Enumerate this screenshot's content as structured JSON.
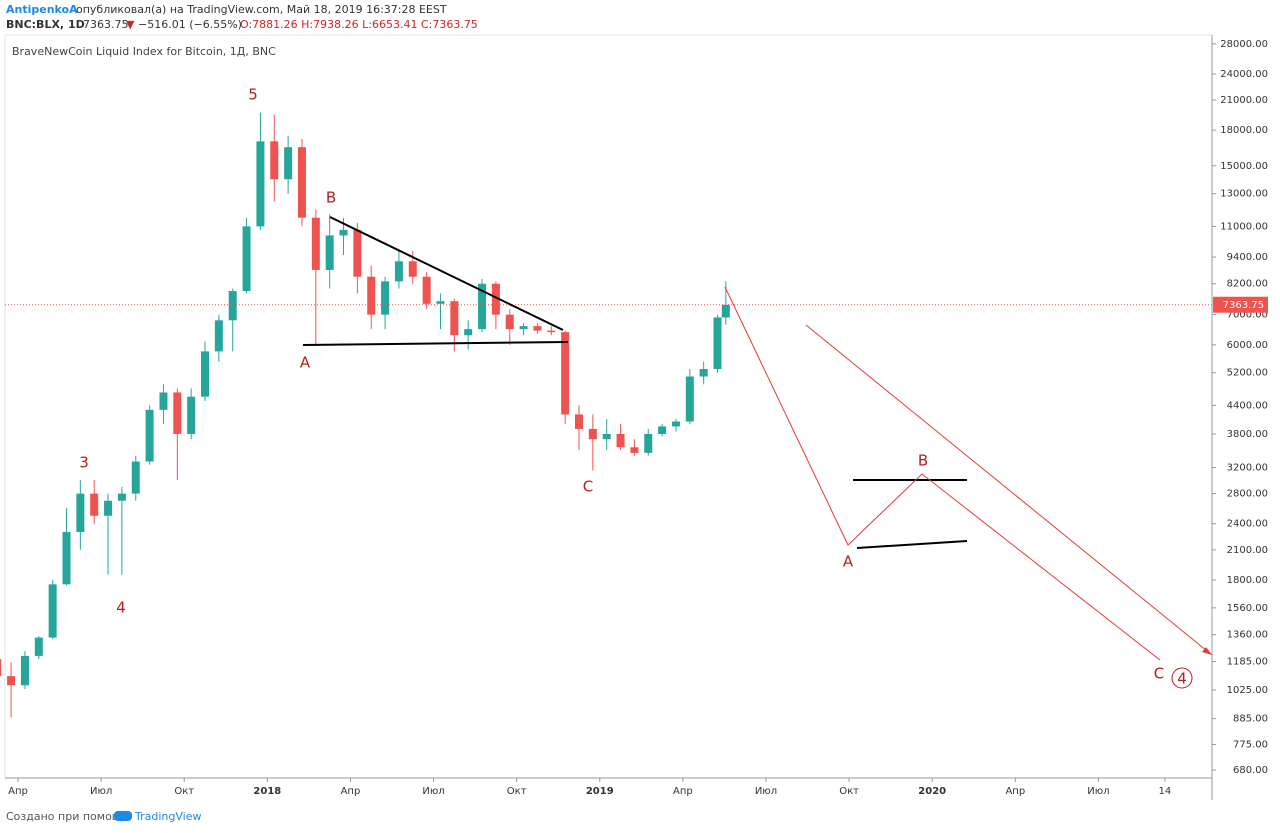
{
  "header": {
    "author": "AntipenkoA",
    "published": "опубликовал(а) на TradingView.com, Май 18, 2019 16:37:28 EEST",
    "symbol": "BNC:BLX, 1D",
    "last": "7363.75",
    "arrow": "▼",
    "change": "−516.01 (−6.55%)",
    "ohlc": "O:7881.26 H:7938.26 L:6653.41 C:7363.75"
  },
  "footer": {
    "text": "Создано при помощи",
    "brand": "TradingView"
  },
  "chart_data": {
    "type": "candlestick",
    "title": "BraveNewCoin Liquid Index for Bitcoin, 1Д, BNC",
    "log_scale": true,
    "up_color": "#26a69a",
    "down_color": "#ef5350",
    "xlim": [
      2.53,
      46.1
    ],
    "ylim": [
      653,
      29300
    ],
    "xticks": [
      {
        "value": 3,
        "label": "Апр"
      },
      {
        "value": 6,
        "label": "Июл"
      },
      {
        "value": 9,
        "label": "Окт"
      },
      {
        "value": 12,
        "label": "2018"
      },
      {
        "value": 15,
        "label": "Апр"
      },
      {
        "value": 18,
        "label": "Июл"
      },
      {
        "value": 21,
        "label": "Окт"
      },
      {
        "value": 24,
        "label": "2019"
      },
      {
        "value": 27,
        "label": "Апр"
      },
      {
        "value": 30,
        "label": "Июл"
      },
      {
        "value": 33,
        "label": "Окт"
      },
      {
        "value": 36,
        "label": "2020"
      },
      {
        "value": 39,
        "label": "Апр"
      },
      {
        "value": 42,
        "label": "Июл"
      },
      {
        "value": 44.4,
        "label": "14"
      }
    ],
    "yticks": [
      {
        "value": 28000,
        "label": "28000.00"
      },
      {
        "value": 24000,
        "label": "24000.00"
      },
      {
        "value": 21000,
        "label": "21000.00"
      },
      {
        "value": 18000,
        "label": "18000.00"
      },
      {
        "value": 15000,
        "label": "15000.00"
      },
      {
        "value": 13000,
        "label": "13000.00"
      },
      {
        "value": 11000,
        "label": "11000.00"
      },
      {
        "value": 9400,
        "label": "9400.00"
      },
      {
        "value": 8200,
        "label": "8200.00"
      },
      {
        "value": 7000,
        "label": "7000.00"
      },
      {
        "value": 6000,
        "label": "6000.00"
      },
      {
        "value": 5200,
        "label": "5200.00"
      },
      {
        "value": 4400,
        "label": "4400.00"
      },
      {
        "value": 3800,
        "label": "3800.00"
      },
      {
        "value": 3200,
        "label": "3200.00"
      },
      {
        "value": 2800,
        "label": "2800.00"
      },
      {
        "value": 2400,
        "label": "2400.00"
      },
      {
        "value": 2100,
        "label": "2100.00"
      },
      {
        "value": 1800,
        "label": "1800.00"
      },
      {
        "value": 1560,
        "label": "1560.00"
      },
      {
        "value": 1360,
        "label": "1360.00"
      },
      {
        "value": 1185,
        "label": "1185.00"
      },
      {
        "value": 1025,
        "label": "1025.00"
      },
      {
        "value": 885,
        "label": "885.00"
      },
      {
        "value": 775,
        "label": "775.00"
      },
      {
        "value": 680,
        "label": "680.00"
      }
    ],
    "last_price": {
      "value": 7363.75,
      "label": "7363.75"
    },
    "x": [
      2.25,
      2.75,
      3.25,
      3.75,
      4.25,
      4.75,
      5.25,
      5.75,
      6.25,
      6.75,
      7.25,
      7.75,
      8.25,
      8.75,
      9.25,
      9.75,
      10.25,
      10.75,
      11.25,
      11.75,
      12.25,
      12.75,
      13.25,
      13.75,
      14.25,
      14.75,
      15.25,
      15.75,
      16.25,
      16.75,
      17.25,
      17.75,
      18.25,
      18.75,
      19.25,
      19.75,
      20.25,
      20.75,
      21.25,
      21.75,
      22.25,
      22.75,
      23.25,
      23.75,
      24.25,
      24.75,
      25.25,
      25.75,
      26.25,
      26.75,
      27.25,
      27.75,
      28.25,
      28.55
    ],
    "open": [
      1200,
      1100,
      1050,
      1220,
      1340,
      1760,
      2300,
      2800,
      2500,
      2700,
      2800,
      3300,
      4300,
      4700,
      3800,
      4600,
      5800,
      6800,
      7900,
      11000,
      17000,
      14000,
      16500,
      11500,
      8800,
      10500,
      10800,
      8500,
      7000,
      8300,
      9200,
      8500,
      7400,
      7500,
      6300,
      6500,
      8200,
      7000,
      6500,
      6600,
      6450,
      6400,
      4200,
      3900,
      3700,
      3800,
      3550,
      3450,
      3800,
      3950,
      4050,
      5100,
      5300,
      6900
    ],
    "high": [
      1280,
      1180,
      1250,
      1350,
      1800,
      2600,
      3000,
      3000,
      2800,
      2900,
      3400,
      4400,
      4900,
      4800,
      4800,
      6100,
      7000,
      8000,
      11500,
      19700,
      19500,
      17500,
      17200,
      12000,
      11700,
      11500,
      11200,
      9000,
      8500,
      9800,
      9700,
      8700,
      7800,
      7600,
      6800,
      8400,
      8300,
      7200,
      6700,
      6700,
      6600,
      6450,
      4400,
      4200,
      4100,
      4000,
      3700,
      3900,
      4000,
      4100,
      5300,
      5500,
      7000,
      8300
    ],
    "low": [
      1050,
      890,
      1030,
      1200,
      1330,
      1750,
      2100,
      2400,
      1850,
      1850,
      2700,
      3250,
      4000,
      3000,
      3700,
      4500,
      5500,
      5800,
      7800,
      10800,
      12500,
      13000,
      11000,
      6000,
      8000,
      9500,
      7800,
      6500,
      6500,
      8000,
      8200,
      7200,
      6500,
      5800,
      5850,
      6400,
      6500,
      6000,
      6300,
      6350,
      6300,
      4000,
      3500,
      3150,
      3500,
      3500,
      3400,
      3400,
      3750,
      3850,
      4000,
      4900,
      5200,
      6650
    ],
    "close": [
      1100,
      1050,
      1220,
      1340,
      1760,
      2300,
      2800,
      2500,
      2700,
      2800,
      3300,
      4300,
      4700,
      3800,
      4600,
      5800,
      6800,
      7900,
      11000,
      17000,
      14000,
      16500,
      11500,
      8800,
      10500,
      10800,
      8500,
      7000,
      8300,
      9200,
      8500,
      7400,
      7500,
      6300,
      6500,
      8200,
      7000,
      6500,
      6600,
      6450,
      6400,
      4200,
      3900,
      3700,
      3800,
      3550,
      3450,
      3800,
      3950,
      4050,
      5100,
      5300,
      6900,
      7363.75
    ],
    "annotations": [
      "5",
      "B",
      "A",
      "3",
      "4",
      "C",
      "B",
      "A",
      "C",
      "4"
    ]
  }
}
